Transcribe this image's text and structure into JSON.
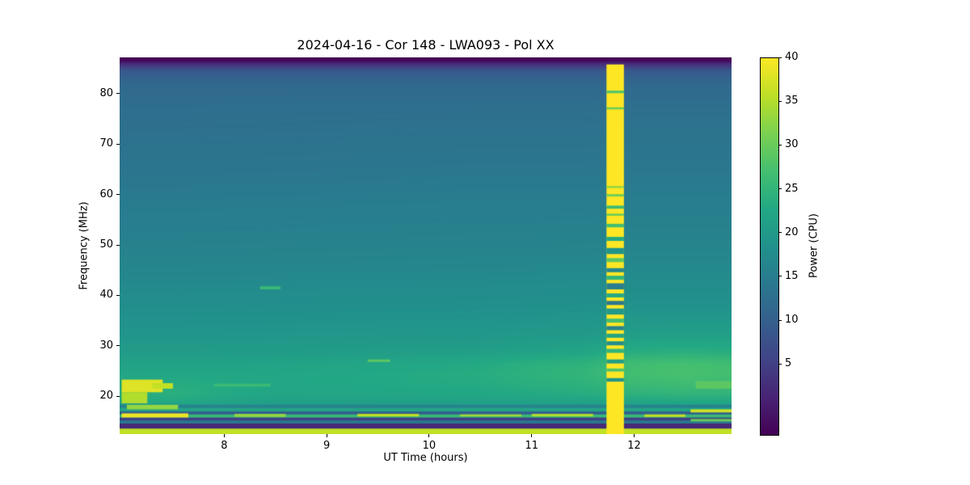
{
  "chart_data": {
    "type": "heatmap",
    "title": "2024-04-16 - Cor 148 - LWA093 - Pol XX",
    "xlabel": "UT Time (hours)",
    "ylabel": "Frequency (MHz)",
    "colorbar_label": "Power (CPU)",
    "colormap": "viridis",
    "xlim": [
      6.98,
      12.95
    ],
    "ylim": [
      12.5,
      87.2
    ],
    "clim": [
      -3,
      40
    ],
    "xticks": [
      8,
      9,
      10,
      11,
      12
    ],
    "yticks": [
      20,
      30,
      40,
      50,
      60,
      70,
      80
    ],
    "colorbar_ticks": [
      5,
      10,
      15,
      20,
      25,
      30,
      35,
      40
    ],
    "viridis_stops": [
      [
        0.0,
        68,
        1,
        84
      ],
      [
        0.1,
        72,
        36,
        117
      ],
      [
        0.2,
        65,
        68,
        135
      ],
      [
        0.3,
        53,
        95,
        141
      ],
      [
        0.4,
        42,
        120,
        142
      ],
      [
        0.5,
        33,
        145,
        140
      ],
      [
        0.6,
        34,
        168,
        132
      ],
      [
        0.7,
        68,
        191,
        112
      ],
      [
        0.8,
        122,
        209,
        81
      ],
      [
        0.9,
        189,
        223,
        38
      ],
      [
        1.0,
        253,
        231,
        37
      ]
    ],
    "background": {
      "time_points": [
        6.98,
        7.5,
        8.5,
        9.5,
        10.5,
        11.0,
        11.5,
        12.0,
        12.5,
        12.95
      ],
      "freq_points": [
        87.2,
        86.6,
        85.8,
        84.5,
        82.0,
        78.0,
        72.0,
        65.0,
        58.0,
        50.0,
        44.0,
        38.0,
        32.0,
        29.0,
        26.5,
        24.5,
        22.5,
        20.5,
        19.0,
        18.3,
        12.5
      ],
      "values": [
        [
          -3,
          -3,
          -3,
          -3,
          -3,
          -3,
          -3,
          -3,
          -3,
          -3
        ],
        [
          -2.5,
          -2.5,
          -2.5,
          -2.5,
          -2.5,
          -2.5,
          -2.5,
          -2.5,
          -2.5,
          -2.5
        ],
        [
          3,
          3,
          3,
          3,
          3,
          3,
          3,
          3,
          3,
          3
        ],
        [
          9,
          9,
          9,
          9,
          9,
          9,
          9,
          9,
          9,
          9
        ],
        [
          11.5,
          11.5,
          11.5,
          11.5,
          11.5,
          11.5,
          11.5,
          11.5,
          11.5,
          11.5
        ],
        [
          12.3,
          12.3,
          12.4,
          12.5,
          12.5,
          12.5,
          12.5,
          12.6,
          12.6,
          12.6
        ],
        [
          13,
          13,
          13.1,
          13.2,
          13.3,
          13.3,
          13.3,
          13.4,
          13.4,
          13.4
        ],
        [
          13.8,
          13.8,
          13.9,
          14,
          14.1,
          14.1,
          14.1,
          14.2,
          14.2,
          14.2
        ],
        [
          14.8,
          14.8,
          14.9,
          15,
          15.1,
          15.1,
          15.1,
          15.2,
          15.2,
          15.2
        ],
        [
          15.8,
          15.8,
          15.9,
          16,
          16.1,
          16.1,
          16.2,
          16.3,
          16.3,
          16.3
        ],
        [
          16.8,
          16.8,
          16.9,
          17,
          17.1,
          17.2,
          17.3,
          17.4,
          17.4,
          17.4
        ],
        [
          18,
          18,
          18.1,
          18.2,
          18.3,
          18.4,
          18.5,
          18.7,
          18.7,
          18.7
        ],
        [
          19.4,
          19.4,
          19.5,
          19.6,
          19.8,
          20,
          20.2,
          21,
          21.2,
          21.2
        ],
        [
          20.4,
          20.4,
          20.5,
          20.7,
          21,
          21.5,
          22,
          23.5,
          23.8,
          23.5
        ],
        [
          21.6,
          21.6,
          21.7,
          22.2,
          23,
          24,
          24.5,
          26.5,
          27,
          26.5
        ],
        [
          22.2,
          22.4,
          22.3,
          22.8,
          23.5,
          24.5,
          25,
          27,
          27.5,
          27
        ],
        [
          23,
          23.5,
          22.5,
          22.8,
          23.2,
          24,
          24.5,
          26,
          26.5,
          26
        ],
        [
          23.5,
          24,
          22.2,
          22.4,
          22.6,
          23,
          23.5,
          24.5,
          25,
          24.8
        ],
        [
          22.5,
          23,
          21.4,
          21.5,
          21.6,
          21.8,
          22,
          22.5,
          23,
          22.8
        ],
        [
          21,
          21.5,
          20.6,
          20.7,
          20.8,
          20.9,
          21,
          21.2,
          21.5,
          21.3
        ],
        [
          20,
          20,
          20,
          20,
          20,
          20,
          20,
          20,
          20,
          20
        ]
      ]
    },
    "bottom_bands": [
      {
        "f0": 12.5,
        "f1": 13.6,
        "v": 36
      },
      {
        "f0": 13.6,
        "f1": 14.6,
        "v": 2
      },
      {
        "f0": 14.6,
        "f1": 15.2,
        "v": 14
      },
      {
        "f0": 15.2,
        "f1": 15.8,
        "v": 5
      },
      {
        "f0": 15.8,
        "f1": 16.4,
        "v": 26
      },
      {
        "f0": 16.4,
        "f1": 17.0,
        "v": 10
      },
      {
        "f0": 17.0,
        "f1": 17.7,
        "v": 22
      },
      {
        "f0": 17.7,
        "f1": 18.3,
        "v": 16
      }
    ],
    "rfi_patches": [
      {
        "t0": 7.0,
        "t1": 7.4,
        "f0": 20.8,
        "f1": 23.3,
        "v": 38
      },
      {
        "t0": 7.0,
        "t1": 7.25,
        "f0": 18.6,
        "f1": 20.8,
        "v": 35
      },
      {
        "t0": 7.0,
        "t1": 7.65,
        "f0": 15.8,
        "f1": 16.6,
        "v": 39
      },
      {
        "t0": 7.05,
        "t1": 7.55,
        "f0": 17.4,
        "f1": 18.3,
        "v": 33
      },
      {
        "t0": 7.3,
        "t1": 7.5,
        "f0": 21.5,
        "f1": 22.6,
        "v": 36
      },
      {
        "t0": 8.1,
        "t1": 8.6,
        "f0": 15.9,
        "f1": 16.5,
        "v": 33
      },
      {
        "t0": 9.3,
        "t1": 9.9,
        "f0": 16.0,
        "f1": 16.5,
        "v": 36
      },
      {
        "t0": 10.3,
        "t1": 10.9,
        "f0": 16.0,
        "f1": 16.4,
        "v": 34
      },
      {
        "t0": 11.0,
        "t1": 11.6,
        "f0": 16.0,
        "f1": 16.5,
        "v": 35
      },
      {
        "t0": 12.1,
        "t1": 12.5,
        "f0": 15.9,
        "f1": 16.4,
        "v": 36
      },
      {
        "t0": 12.55,
        "t1": 12.95,
        "f0": 16.8,
        "f1": 17.4,
        "v": 37
      },
      {
        "t0": 12.55,
        "t1": 12.95,
        "f0": 15.0,
        "f1": 15.5,
        "v": 30
      },
      {
        "t0": 8.35,
        "t1": 8.55,
        "f0": 41.2,
        "f1": 41.8,
        "v": 26
      },
      {
        "t0": 9.4,
        "t1": 9.62,
        "f0": 26.8,
        "f1": 27.3,
        "v": 29
      },
      {
        "t0": 7.9,
        "t1": 8.45,
        "f0": 21.9,
        "f1": 22.5,
        "v": 26
      },
      {
        "t0": 12.6,
        "t1": 12.95,
        "f0": 21.5,
        "f1": 23.0,
        "v": 29
      }
    ],
    "burst_column": {
      "t0": 11.73,
      "t1": 11.9,
      "f0": 12.5,
      "f1": 85.8,
      "base_value": 40,
      "strips": [
        {
          "f0": 53.5,
          "f1": 54.2,
          "v": 27
        },
        {
          "f0": 50.8,
          "f1": 51.6,
          "v": 23
        },
        {
          "f0": 48.2,
          "f1": 49.4,
          "v": 19
        },
        {
          "f0": 46.6,
          "f1": 47.4,
          "v": 29
        },
        {
          "f0": 44.6,
          "f1": 45.4,
          "v": 17
        },
        {
          "f0": 43.1,
          "f1": 43.9,
          "v": 25
        },
        {
          "f0": 41.2,
          "f1": 42.4,
          "v": 15
        },
        {
          "f0": 39.6,
          "f1": 40.4,
          "v": 23
        },
        {
          "f0": 38.1,
          "f1": 38.9,
          "v": 14
        },
        {
          "f0": 36.2,
          "f1": 37.4,
          "v": 20
        },
        {
          "f0": 34.6,
          "f1": 35.4,
          "v": 27
        },
        {
          "f0": 33.1,
          "f1": 33.9,
          "v": 16
        },
        {
          "f0": 31.6,
          "f1": 32.4,
          "v": 22
        },
        {
          "f0": 30.1,
          "f1": 30.9,
          "v": 18
        },
        {
          "f0": 28.6,
          "f1": 29.4,
          "v": 25
        },
        {
          "f0": 26.5,
          "f1": 27.3,
          "v": 21
        },
        {
          "f0": 24.9,
          "f1": 25.5,
          "v": 28
        },
        {
          "f0": 22.9,
          "f1": 23.6,
          "v": 19
        },
        {
          "f0": 57.2,
          "f1": 57.8,
          "v": 26
        },
        {
          "f0": 59.6,
          "f1": 60.1,
          "v": 31
        },
        {
          "f0": 61.3,
          "f1": 61.7,
          "v": 33
        },
        {
          "f0": 55.8,
          "f1": 56.2,
          "v": 30
        },
        {
          "f0": 76.9,
          "f1": 77.3,
          "v": 30
        },
        {
          "f0": 80.1,
          "f1": 80.6,
          "v": 28
        }
      ]
    }
  }
}
